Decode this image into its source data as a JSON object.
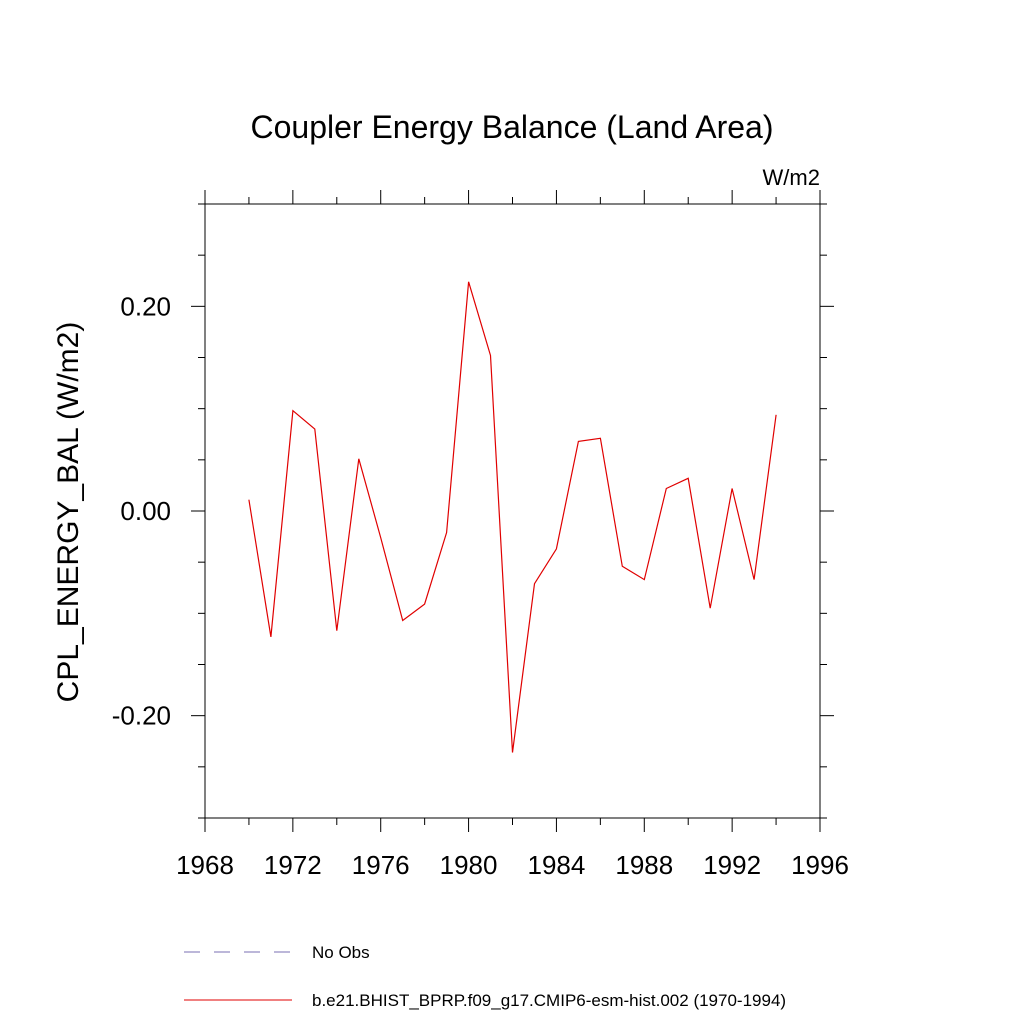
{
  "chart_data": {
    "type": "line",
    "title": "Coupler Energy Balance (Land Area)",
    "units_label": "W/m2",
    "ylabel": "CPL_ENERGY_BAL  (W/m2)",
    "xlabel": "",
    "xlim": [
      1968,
      1996
    ],
    "ylim": [
      -0.3,
      0.3
    ],
    "x_ticks": [
      1968,
      1972,
      1976,
      1980,
      1984,
      1988,
      1992,
      1996
    ],
    "x_tick_labels": [
      "1968",
      "1972",
      "1976",
      "1980",
      "1984",
      "1988",
      "1992",
      "1996"
    ],
    "x_minor_step": 2,
    "y_ticks": [
      -0.2,
      0.0,
      0.2
    ],
    "y_tick_labels": [
      "-0.20",
      "0.00",
      "0.20"
    ],
    "y_minor_step": 0.05,
    "grid": false,
    "legend_position": "bottom",
    "legend": [
      {
        "label": "No Obs",
        "color": "#7a6fb3",
        "dash": "dashed"
      },
      {
        "label": "b.e21.BHIST_BPRP.f09_g17.CMIP6-esm-hist.002 (1970-1994)",
        "color": "#e00000",
        "dash": "solid"
      }
    ],
    "series": [
      {
        "name": "b.e21.BHIST_BPRP.f09_g17.CMIP6-esm-hist.002 (1970-1994)",
        "color": "#e00000",
        "x": [
          1970,
          1971,
          1972,
          1973,
          1974,
          1975,
          1976,
          1977,
          1978,
          1979,
          1980,
          1981,
          1982,
          1983,
          1984,
          1985,
          1986,
          1987,
          1988,
          1989,
          1990,
          1991,
          1992,
          1993,
          1994
        ],
        "y": [
          0.011,
          -0.123,
          0.098,
          0.08,
          -0.117,
          0.051,
          -0.026,
          -0.107,
          -0.091,
          -0.021,
          0.224,
          0.152,
          -0.236,
          -0.071,
          -0.037,
          0.068,
          0.071,
          -0.054,
          -0.067,
          0.022,
          0.032,
          -0.095,
          0.022,
          -0.067,
          0.094
        ]
      }
    ]
  }
}
